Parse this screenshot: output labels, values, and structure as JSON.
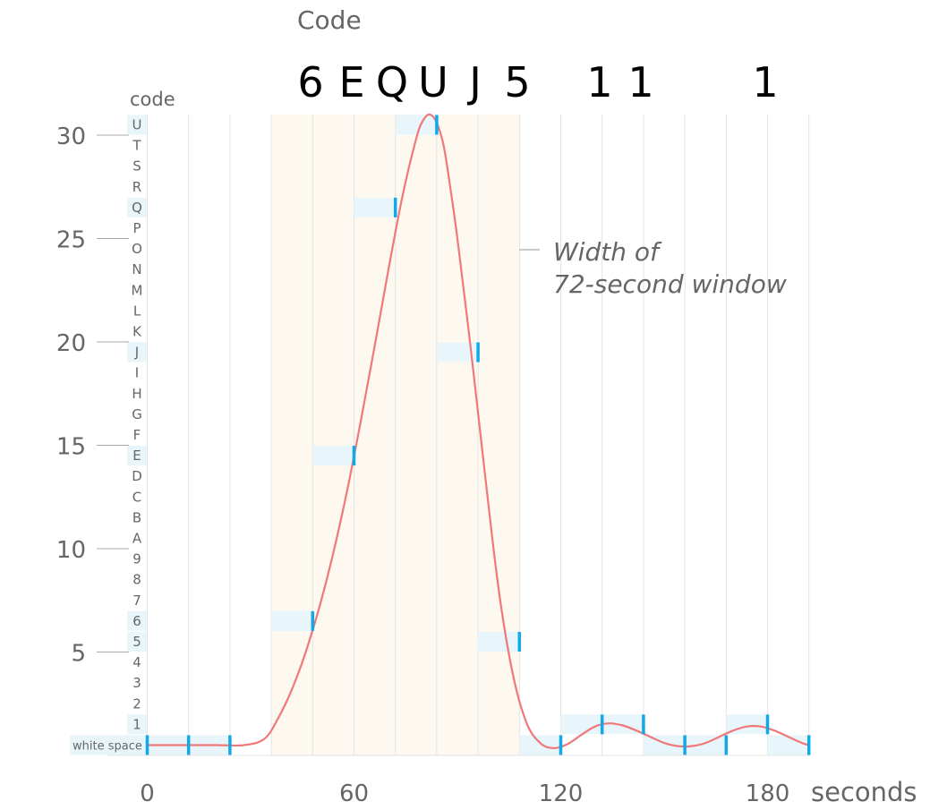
{
  "chart_data": {
    "type": "line",
    "title": "Code",
    "code_characters": [
      "6",
      "E",
      "Q",
      "U",
      "J",
      "5",
      "1",
      "1",
      "1"
    ],
    "code_axis_label": "code",
    "row_labels": [
      "white space",
      "1",
      "2",
      "3",
      "4",
      "5",
      "6",
      "7",
      "8",
      "9",
      "A",
      "B",
      "C",
      "D",
      "E",
      "F",
      "G",
      "H",
      "I",
      "J",
      "K",
      "L",
      "M",
      "N",
      "O",
      "P",
      "Q",
      "R",
      "S",
      "T",
      "U"
    ],
    "highlighted_rows": [
      "white space",
      "1",
      "5",
      "6",
      "E",
      "J",
      "Q",
      "U"
    ],
    "x_unit_label": "seconds",
    "x_ticks": [
      0,
      60,
      120,
      180
    ],
    "y_ticks": [
      5,
      10,
      15,
      20,
      25,
      30
    ],
    "xlim": [
      -1,
      192
    ],
    "ylim": [
      0,
      31
    ],
    "window_highlight": {
      "start": 36,
      "end": 108
    },
    "annotation_lines": [
      "Width of",
      "72-second window"
    ],
    "vertical_gridlines": [
      0,
      12,
      24,
      36,
      48,
      60,
      72,
      84,
      96,
      108,
      120,
      132,
      144,
      156,
      168,
      180,
      192
    ],
    "sample_segments": [
      {
        "x_start": 0,
        "x_end": 12,
        "level": 0.5
      },
      {
        "x_start": 12,
        "x_end": 24,
        "level": 0.5
      },
      {
        "x_start": 36,
        "x_end": 48,
        "level": 6.5
      },
      {
        "x_start": 48,
        "x_end": 60,
        "level": 14.5
      },
      {
        "x_start": 60,
        "x_end": 72,
        "level": 26.5
      },
      {
        "x_start": 72,
        "x_end": 84,
        "level": 30.5
      },
      {
        "x_start": 84,
        "x_end": 96,
        "level": 19.5
      },
      {
        "x_start": 96,
        "x_end": 108,
        "level": 5.5
      },
      {
        "x_start": 108,
        "x_end": 120,
        "level": 0.5
      },
      {
        "x_start": 120,
        "x_end": 132,
        "level": 1.5
      },
      {
        "x_start": 132,
        "x_end": 144,
        "level": 1.5
      },
      {
        "x_start": 144,
        "x_end": 156,
        "level": 0.5
      },
      {
        "x_start": 156,
        "x_end": 168,
        "level": 0.5
      },
      {
        "x_start": 168,
        "x_end": 180,
        "level": 1.5
      },
      {
        "x_start": 180,
        "x_end": 192,
        "level": 0.5
      }
    ],
    "markers": [
      {
        "x": 0,
        "y": 0.5
      },
      {
        "x": 12,
        "y": 0.5
      },
      {
        "x": 24,
        "y": 0.5
      },
      {
        "x": 48,
        "y": 6.5
      },
      {
        "x": 60,
        "y": 14.5
      },
      {
        "x": 72,
        "y": 26.5
      },
      {
        "x": 84,
        "y": 30.5
      },
      {
        "x": 96,
        "y": 19.5
      },
      {
        "x": 108,
        "y": 5.5
      },
      {
        "x": 120,
        "y": 0.5
      },
      {
        "x": 132,
        "y": 1.5
      },
      {
        "x": 144,
        "y": 1.5
      },
      {
        "x": 156,
        "y": 0.5
      },
      {
        "x": 168,
        "y": 0.5
      },
      {
        "x": 180,
        "y": 1.5
      },
      {
        "x": 192,
        "y": 0.5
      }
    ],
    "curve": {
      "x": [
        0,
        10,
        20,
        28,
        34,
        38,
        42,
        46,
        50,
        54,
        58,
        62,
        66,
        70,
        74,
        78,
        80,
        82,
        84,
        86,
        88,
        90,
        94,
        98,
        102,
        106,
        110,
        114,
        118,
        122,
        126,
        130,
        134,
        138,
        142,
        146,
        150,
        154,
        158,
        162,
        166,
        170,
        174,
        178,
        182,
        186,
        190,
        192
      ],
      "y": [
        0.5,
        0.5,
        0.5,
        0.5,
        0.8,
        1.8,
        3.2,
        5.0,
        7.2,
        9.8,
        12.8,
        16.2,
        19.8,
        23.5,
        27.0,
        29.8,
        30.7,
        31.0,
        30.6,
        29.5,
        27.4,
        25.0,
        19.5,
        13.6,
        8.0,
        4.0,
        1.6,
        0.6,
        0.35,
        0.55,
        1.0,
        1.4,
        1.55,
        1.45,
        1.2,
        0.9,
        0.6,
        0.45,
        0.45,
        0.6,
        0.9,
        1.2,
        1.4,
        1.4,
        1.2,
        0.9,
        0.6,
        0.5
      ]
    },
    "colors": {
      "curve": "#f07878",
      "marker": "#12a9e8",
      "window_fill": "#fdf9f1",
      "sample_fill": "#e8f6fb",
      "row_highlight": "#e8f6fb",
      "gridline": "#e3e3e3",
      "tick_line": "#aaaaaa",
      "code_text": "#000000",
      "axis_text": "#666666"
    }
  }
}
